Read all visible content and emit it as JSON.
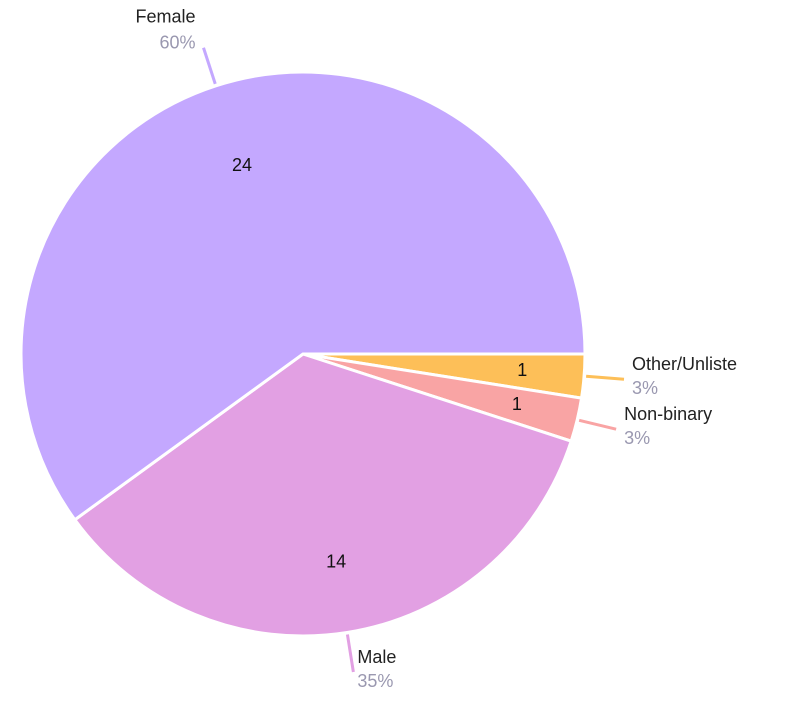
{
  "chart_data": {
    "type": "pie",
    "categories": [
      "Other/Unliste",
      "Non-binary",
      "Male",
      "Female"
    ],
    "values": [
      1,
      1,
      14,
      24
    ],
    "percent_labels": [
      "3%",
      "3%",
      "35%",
      "60%"
    ],
    "colors": [
      "#fdbf58",
      "#f9a4a4",
      "#e2a0e3",
      "#c4a8ff"
    ]
  }
}
